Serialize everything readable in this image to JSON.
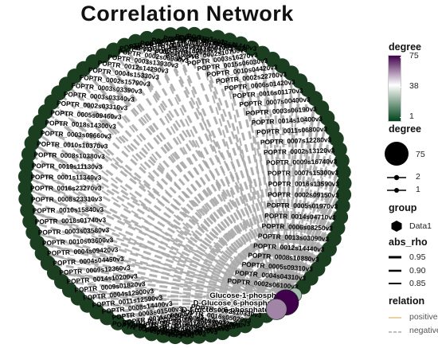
{
  "chart_data": {
    "type": "network",
    "title": "Correlation Network",
    "layout": "circle",
    "ring_labels": [
      "POPTR_0014s10800v3",
      "POPTR_0001s21050v3",
      "POPTR_0007s00300v3",
      "POPTR_0014s09800v3",
      "POPTR_0002s06700v3",
      "POPTR_0002s10700v3",
      "POPTR_0003s16270v3",
      "POPTR_0015s06030v3",
      "POPTR_0010s04420v3",
      "POPTR_0002s22700v3",
      "POPTR_0006s01420v3",
      "POPTR_0016s01170v3",
      "POPTR_0007s00400v3",
      "POPTR_0003s06190v3",
      "POPTR_0014s10400v3",
      "POPTR_0011s06800v3",
      "POPTR_0007s12280v3",
      "POPTR_0002s13120v3",
      "POPTR_0009s16740v3",
      "POPTR_0007s15300v3",
      "POPTR_0016s13590v3",
      "POPTR_0002s09150v3",
      "POPTR_0005s01970v3",
      "POPTR_0014s04710v3",
      "POPTR_0006s08250v3",
      "POPTR_0013s03090v3",
      "POPTR_0012s14440v3",
      "POPTR_0008s10880v3",
      "POPTR_0005s09310v3",
      "POPTR_0004s04310v3",
      "POPTR_0002s06100v3",
      "Glucose-1-phosphate*",
      "D-Glucose 6-phosphate*",
      "D-Fructose 6-phosphate*",
      "POPTR_0002s10330v3",
      "POPTR_0016s05020v3",
      "POPTR_0019s00120v3",
      "POPTR_0016s09820v3",
      "POPTR_0013s08170v3",
      "POPTR_0016s07580v3",
      "POPTR_0003s02550v3",
      "POPTR_0006s09420v3",
      "POPTR_0014s01870v3",
      "POPTR_0003s11760v3",
      "POPTR_0014s11740v3",
      "POPTR_0015s17300v3",
      "POPTR_0017s10500v3",
      "POPTR_0011s06300v3",
      "POPTR_0003s01500v3",
      "POPTR_0008s14400v3",
      "POPTR_0011s12590v3",
      "POPTR_0004s12900v3",
      "POPTR_0009s01820v3",
      "POPTR_0014s10200v3",
      "POPTR_0009s12360v3",
      "POPTR_0004s04450v3",
      "POPTR_0004s09420v3",
      "POPTR_0010s03600v3",
      "POPTR_0003s03580v3",
      "POPTR_0018s01740v3",
      "POPTR_0010s15840v3",
      "POPTR_0008s23310v3",
      "POPTR_0016s23270v3",
      "POPTR_0001s11340v3",
      "POPTR_0019s11130v3",
      "POPTR_0008s10380v3",
      "POPTR_0010s10370v3",
      "POPTR_0003s09660v3",
      "POPTR_0018s14300v3",
      "POPTR_0005s09460v3",
      "POPTR_0002s03310v3",
      "POPTR_0003s03340v3",
      "POPTR_0003s03390v3",
      "POPTR_0002s15790v3",
      "POPTR_0004s15330v3",
      "POPTR_0012s14290v3",
      "POPTR_0003s13930v3",
      "POPTR_0002s06980v3",
      "POPTR_0008s11540v3",
      "POPTR_0006s11520v3",
      "POPTR_0016s11160v3",
      "POPTR_0003s11810v3",
      "POPTR_0014s10900v3",
      "POPTR_0012s11440v3"
    ],
    "hub_nodes": [
      "Glucose-1-phosphate*",
      "D-Glucose 6-phosphate*",
      "D-Fructose 6-phosphate*"
    ],
    "hub_degrees": [
      25,
      75,
      55
    ],
    "edge_relation": "negative",
    "default_gene_degree": 1,
    "colors": {
      "degree_high": "#40004b",
      "degree_mid": "#f7f7f7",
      "degree_low": "#00441b",
      "node_ring": "#1b3d20",
      "edge_negative": "#a8a8a8",
      "edge_positive": "#e8c08a"
    },
    "legend": {
      "degree_color": {
        "title": "degree",
        "ticks": [
          "75",
          "38",
          "1"
        ]
      },
      "degree_size": {
        "title": "degree",
        "items": [
          "75",
          "2",
          "1"
        ]
      },
      "group": {
        "title": "group",
        "items": [
          "Data1"
        ]
      },
      "abs_rho": {
        "title": "abs_rho",
        "items": [
          "0.95",
          "0.90",
          "0.85"
        ]
      },
      "relation": {
        "title": "relation",
        "items": [
          "positive",
          "negative"
        ]
      }
    }
  }
}
